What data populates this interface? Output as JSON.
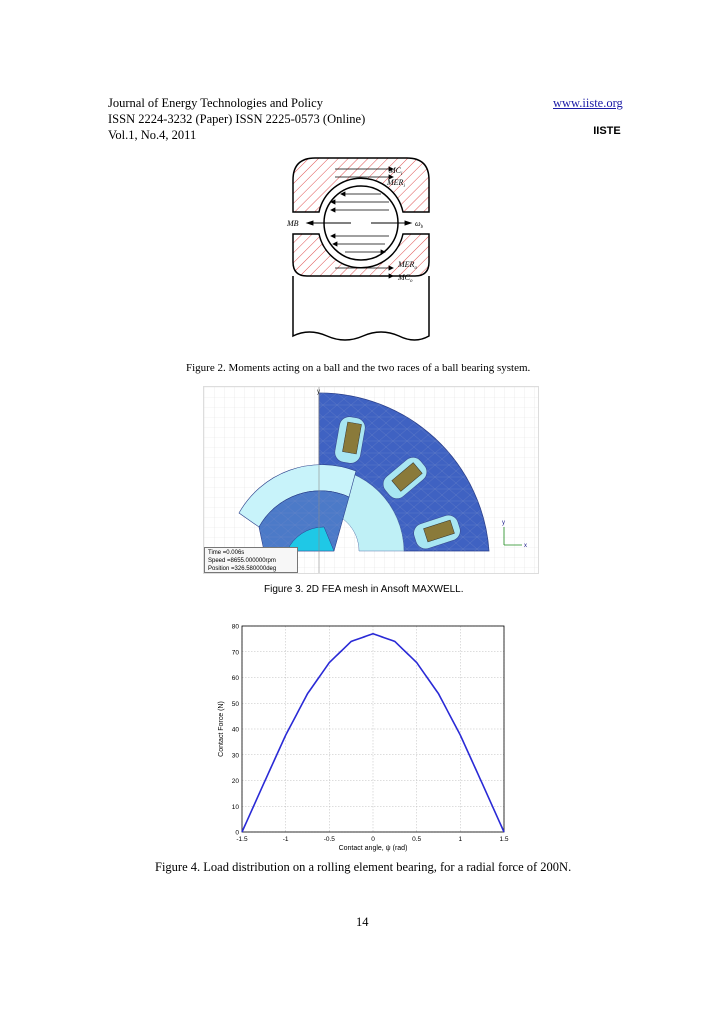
{
  "header": {
    "journal": "Journal of Energy Technologies and Policy",
    "issn_line": "ISSN 2224-3232 (Paper)      ISSN 2225-0573 (Online)",
    "volume": "Vol.1, No.4, 2011",
    "url": "www.iiste.org",
    "logo_text": "IISTE"
  },
  "figure2": {
    "caption": "Figure 2.   Moments acting on a ball and the two races of a ball bearing system.",
    "labels": {
      "mci": "MC",
      "mci_sub": "i",
      "meri": "MER",
      "meri_sub": "i",
      "mb": "MB",
      "omega": "ω",
      "omega_sub": "b",
      "mero": "MER",
      "mero_sub": "o",
      "mco": "MC",
      "mco_sub": "o"
    }
  },
  "figure3": {
    "caption": "Figure 3. 2D FEA mesh in Ansoft MAXWELL.",
    "info": {
      "time": "Time      =0.006s",
      "speed": "Speed    =8655.000000rpm",
      "position": "Position =326.580000deg"
    },
    "axis_y": "y",
    "axis_x": "x"
  },
  "figure4": {
    "caption": "Figure 4. Load distribution on a rolling element bearing, for a radial force of 200N.",
    "chart_data": {
      "type": "line",
      "title": "",
      "xlabel": "Contact angle, ψ (rad)",
      "ylabel": "Contact Force (N)",
      "xlim": [
        -1.5,
        1.5
      ],
      "ylim": [
        0,
        80
      ],
      "xticks": [
        "-1.5",
        "-1",
        "-0.5",
        "0",
        "0.5",
        "1",
        "1.5"
      ],
      "yticks": [
        "0",
        "10",
        "20",
        "30",
        "40",
        "50",
        "60",
        "70",
        "80"
      ],
      "grid": true,
      "series": [
        {
          "color": "#2a2ad6",
          "x": [
            -1.5,
            -1.25,
            -1.0,
            -0.75,
            -0.5,
            -0.25,
            0,
            0.25,
            0.5,
            0.75,
            1.0,
            1.25,
            1.5
          ],
          "y": [
            0,
            18.9,
            37.6,
            53.7,
            65.8,
            74.0,
            77,
            74.0,
            65.8,
            53.7,
            37.6,
            18.9,
            0
          ]
        }
      ]
    }
  },
  "page_number": "14"
}
